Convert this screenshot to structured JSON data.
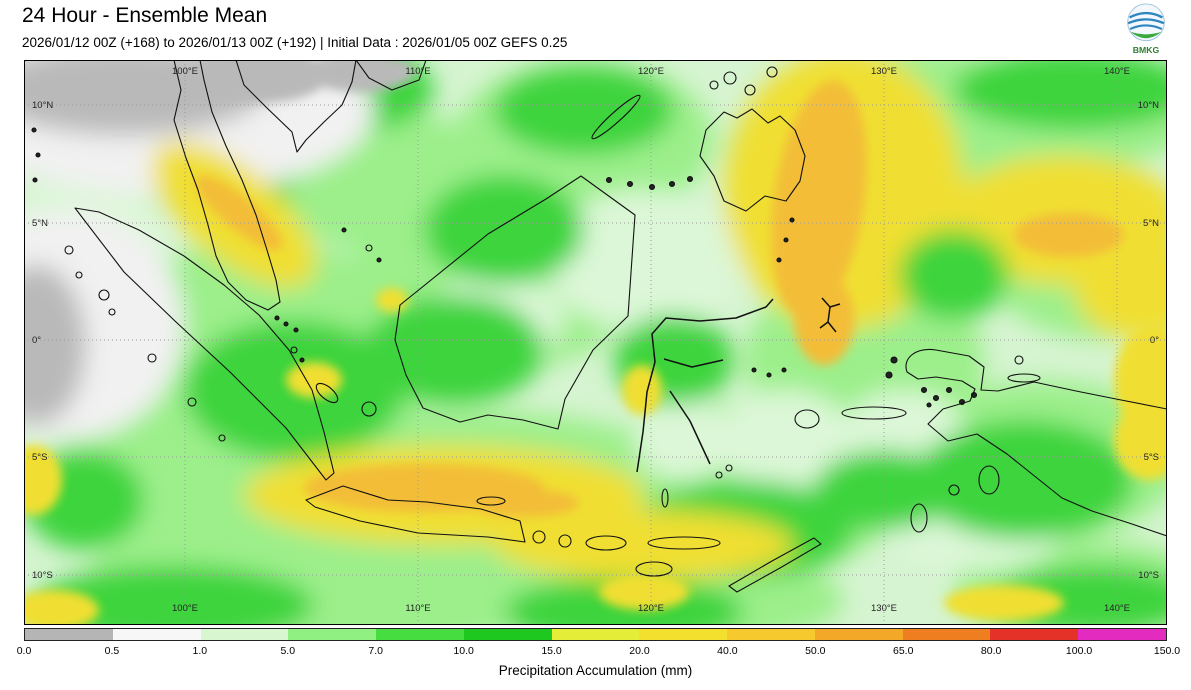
{
  "header": {
    "title": "24 Hour - Ensemble Mean",
    "subtitle": "2026/01/12 00Z (+168) to 2026/01/13 00Z (+192) | Initial Data : 2026/01/05 00Z GEFS 0.25",
    "logo_text": "BMKG"
  },
  "map": {
    "lon_ticks": [
      "100°E",
      "110°E",
      "120°E",
      "130°E",
      "140°E"
    ],
    "lat_ticks": [
      "10°N",
      "5°N",
      "0°",
      "5°S",
      "10°S"
    ]
  },
  "colorbar": {
    "label": "Precipitation Accumulation (mm)",
    "ticks": [
      "0.0",
      "0.5",
      "1.0",
      "5.0",
      "7.0",
      "10.0",
      "15.0",
      "20.0",
      "40.0",
      "50.0",
      "65.0",
      "80.0",
      "100.0",
      "150.0"
    ],
    "colors": [
      "#b5b5b5",
      "#f7f7f7",
      "#d8f6d0",
      "#90f082",
      "#46dd41",
      "#1fc81f",
      "#e4ee39",
      "#f3df2e",
      "#f6c92f",
      "#f4a827",
      "#ee7e20",
      "#e53228",
      "#e32bbf"
    ]
  },
  "chart_data": {
    "type": "heatmap",
    "title": "24 Hour - Ensemble Mean",
    "subtitle": "2026/01/12 00Z (+168) to 2026/01/13 00Z (+192) | Initial Data : 2026/01/05 00Z GEFS 0.25",
    "colorbar_label": "Precipitation Accumulation (mm)",
    "colorbar_ticks_mm": [
      0.0,
      0.5,
      1.0,
      5.0,
      7.0,
      10.0,
      15.0,
      20.0,
      40.0,
      50.0,
      65.0,
      80.0,
      100.0,
      150.0
    ],
    "x_ticks": [
      "100°E",
      "110°E",
      "120°E",
      "130°E",
      "140°E"
    ],
    "y_ticks": [
      "10°N",
      "5°N",
      "0°",
      "5°S",
      "10°S"
    ]
  }
}
